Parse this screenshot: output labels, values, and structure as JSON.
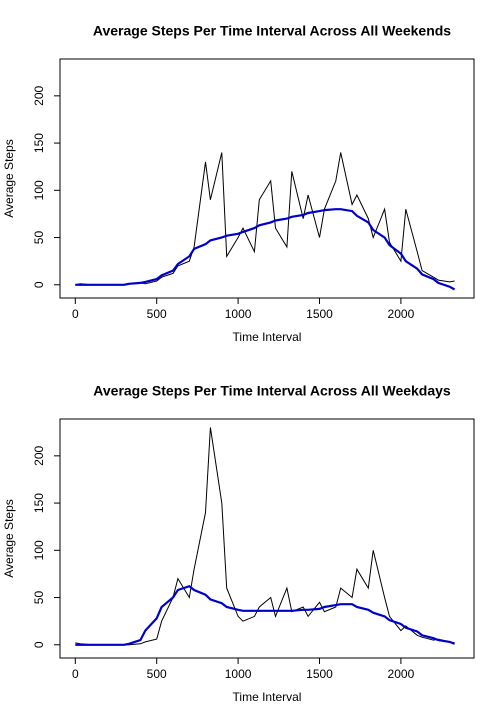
{
  "chart_data": [
    {
      "type": "line",
      "title": "Average Steps Per Time Interval Across All Weekends",
      "xlabel": "Time Interval",
      "ylabel": "Average Steps",
      "x": [
        0,
        30,
        100,
        130,
        200,
        230,
        300,
        330,
        400,
        430,
        500,
        530,
        600,
        630,
        700,
        730,
        800,
        830,
        900,
        930,
        1000,
        1030,
        1100,
        1130,
        1200,
        1230,
        1300,
        1330,
        1400,
        1430,
        1500,
        1530,
        1600,
        1630,
        1700,
        1730,
        1800,
        1830,
        1900,
        1930,
        2000,
        2030,
        2100,
        2130,
        2200,
        2230,
        2300,
        2330
      ],
      "series": [
        {
          "color": "#000000",
          "values": [
            0,
            1,
            0,
            0,
            0,
            0,
            0,
            1,
            2,
            1,
            4,
            8,
            12,
            20,
            25,
            40,
            130,
            90,
            140,
            30,
            50,
            60,
            35,
            90,
            110,
            60,
            40,
            120,
            70,
            95,
            50,
            80,
            110,
            140,
            85,
            95,
            70,
            50,
            80,
            45,
            25,
            80,
            35,
            15,
            8,
            5,
            3,
            4
          ]
        },
        {
          "color": "#0000cd",
          "values": [
            0,
            0,
            0,
            0,
            0,
            0,
            0,
            1,
            2,
            3,
            6,
            10,
            15,
            22,
            30,
            38,
            43,
            47,
            50,
            52,
            54,
            56,
            60,
            63,
            66,
            68,
            70,
            72,
            74,
            76,
            78,
            79,
            80,
            80,
            78,
            73,
            66,
            58,
            50,
            42,
            33,
            25,
            17,
            11,
            6,
            2,
            -2,
            -5
          ]
        }
      ],
      "xlim": [
        -94,
        2449
      ],
      "xticks": [
        0,
        500,
        1000,
        1500,
        2000
      ],
      "ylim": [
        -14,
        239
      ],
      "yticks": [
        0,
        50,
        100,
        150,
        200
      ]
    },
    {
      "type": "line",
      "title": "Average Steps Per Time Interval Across All Weekdays",
      "xlabel": "Time Interval",
      "ylabel": "Average Steps",
      "x": [
        0,
        30,
        100,
        130,
        200,
        230,
        300,
        330,
        400,
        430,
        500,
        530,
        600,
        630,
        700,
        730,
        800,
        830,
        900,
        930,
        1000,
        1030,
        1100,
        1130,
        1200,
        1230,
        1300,
        1330,
        1400,
        1430,
        1500,
        1530,
        1600,
        1630,
        1700,
        1730,
        1800,
        1830,
        1900,
        1930,
        2000,
        2030,
        2100,
        2130,
        2200,
        2230,
        2300,
        2330
      ],
      "series": [
        {
          "color": "#000000",
          "values": [
            2,
            1,
            0,
            0,
            0,
            0,
            0,
            0,
            1,
            3,
            6,
            25,
            50,
            70,
            50,
            80,
            140,
            230,
            150,
            60,
            30,
            25,
            30,
            40,
            50,
            30,
            60,
            35,
            40,
            30,
            45,
            35,
            40,
            60,
            50,
            80,
            60,
            100,
            50,
            30,
            15,
            20,
            10,
            8,
            5,
            6,
            3,
            2
          ]
        },
        {
          "color": "#0000cd",
          "values": [
            0,
            0,
            0,
            0,
            0,
            0,
            0,
            1,
            5,
            15,
            28,
            40,
            50,
            58,
            62,
            58,
            53,
            48,
            44,
            40,
            37,
            36,
            36,
            36,
            36,
            36,
            36,
            36,
            37,
            37,
            38,
            40,
            42,
            43,
            43,
            40,
            37,
            34,
            30,
            26,
            22,
            18,
            14,
            10,
            7,
            5,
            3,
            1
          ]
        }
      ],
      "xlim": [
        -94,
        2449
      ],
      "xticks": [
        0,
        500,
        1000,
        1500,
        2000
      ],
      "ylim": [
        -14,
        239
      ],
      "yticks": [
        0,
        50,
        100,
        150,
        200
      ]
    }
  ]
}
